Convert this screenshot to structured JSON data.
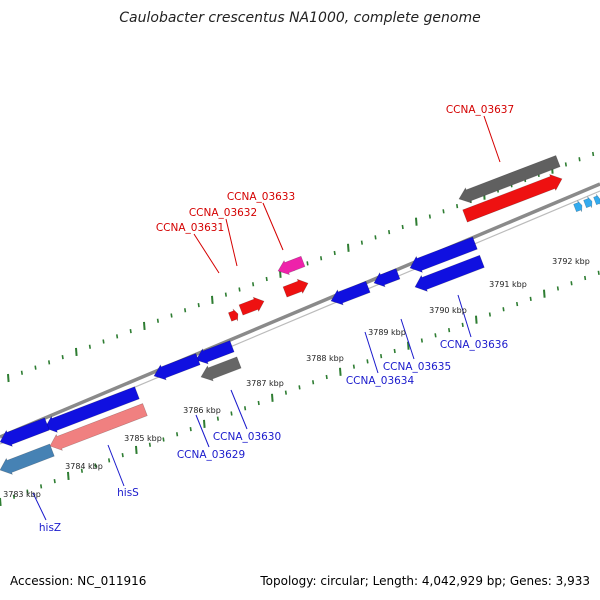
{
  "title": "Caulobacter crescentus NA1000, complete genome",
  "footer": {
    "accession": "Accession: NC_011916",
    "topology": "Topology: circular; Length: 4,042,929 bp; Genes: 3,933"
  },
  "colors": {
    "backbone": "#8a8a8a",
    "tick": "#2e7d32",
    "label_forward": "#d40000",
    "label_reverse": "#1a1acc",
    "gene_blue": "#1010e0",
    "gene_red": "#ee1111",
    "gene_pink": "#f08080",
    "gene_magenta": "#ee22aa",
    "gene_gray": "#666666",
    "gene_steel": "#4682b4",
    "gene_cyan": "#33aaee"
  },
  "scale_labels": [
    "3783 kbp",
    "3784 kbp",
    "3785 kbp",
    "3786 kbp",
    "3787 kbp",
    "3788 kbp",
    "3789 kbp",
    "3790 kbp",
    "3791 kbp",
    "3792 kbp"
  ],
  "forward_genes": [
    {
      "label": "CCNA_03631",
      "color_key": "gene_red"
    },
    {
      "label": "CCNA_03632",
      "color_key": "gene_red"
    },
    {
      "label": "CCNA_03633",
      "color_key": "gene_magenta"
    },
    {
      "label": "CCNA_03637",
      "color_key": "gene_red"
    }
  ],
  "reverse_genes": [
    {
      "label": "hisZ",
      "color_key": "gene_steel"
    },
    {
      "label": "hisS",
      "color_key": "gene_pink"
    },
    {
      "label": "CCNA_03629",
      "color_key": "gene_blue"
    },
    {
      "label": "CCNA_03630",
      "color_key": "gene_gray"
    },
    {
      "label": "CCNA_03634",
      "color_key": "gene_blue"
    },
    {
      "label": "CCNA_03635",
      "color_key": "gene_blue"
    },
    {
      "label": "CCNA_03636",
      "color_key": "gene_blue"
    }
  ]
}
